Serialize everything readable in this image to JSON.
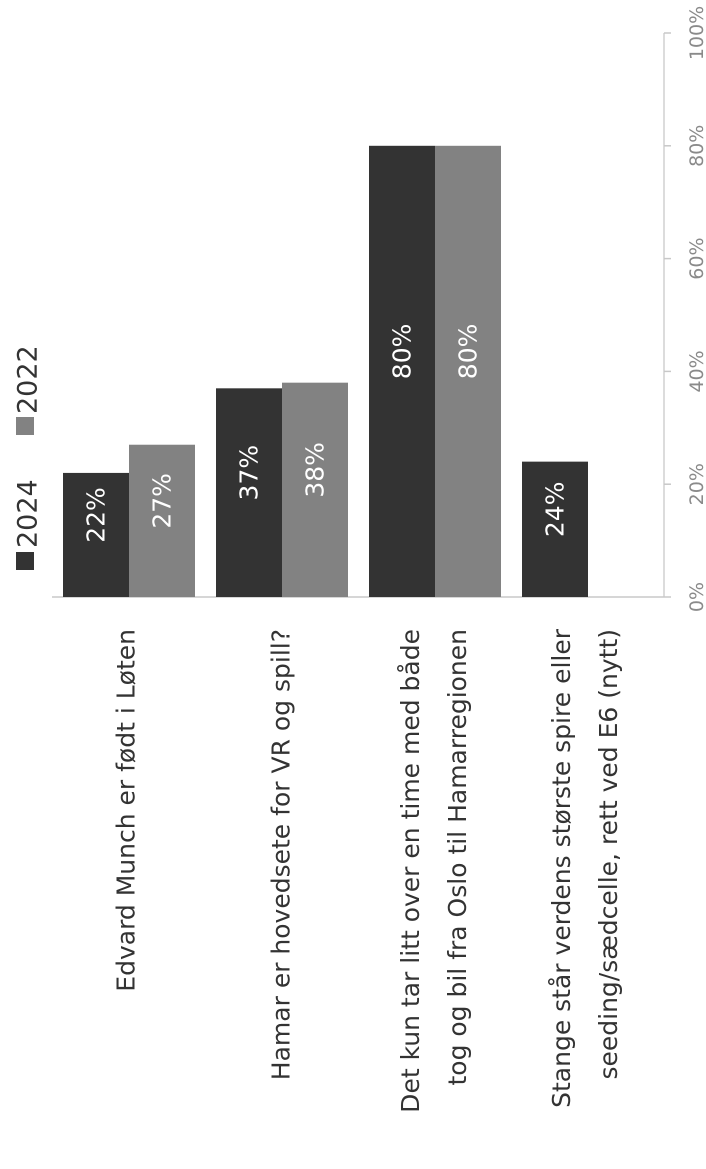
{
  "chart_data": {
    "type": "bar",
    "orientation": "rotated-vertical",
    "categories": [
      [
        "Edvard Munch er født i Løten"
      ],
      [
        "Hamar er hovedsete for VR og spill?"
      ],
      [
        "Det kun tar litt over en time med både",
        "tog og bil fra Oslo til Hamarregionen"
      ],
      [
        "Stange står verdens største spire eller",
        "seeding/sædcelle, rett ved E6 (nytt)"
      ]
    ],
    "series": [
      {
        "name": "2024",
        "color": "#333333",
        "values": [
          22,
          37,
          80,
          24
        ],
        "labels": [
          "22%",
          "37%",
          "80%",
          "24%"
        ]
      },
      {
        "name": "2022",
        "color": "#828282",
        "values": [
          27,
          38,
          80,
          null
        ],
        "labels": [
          "27%",
          "38%",
          "80%",
          ""
        ]
      }
    ],
    "ticks": [
      "0%",
      "20%",
      "40%",
      "60%",
      "80%",
      "100%"
    ],
    "ylim": [
      0,
      100
    ],
    "legend_position": "top-left",
    "grid": false
  }
}
